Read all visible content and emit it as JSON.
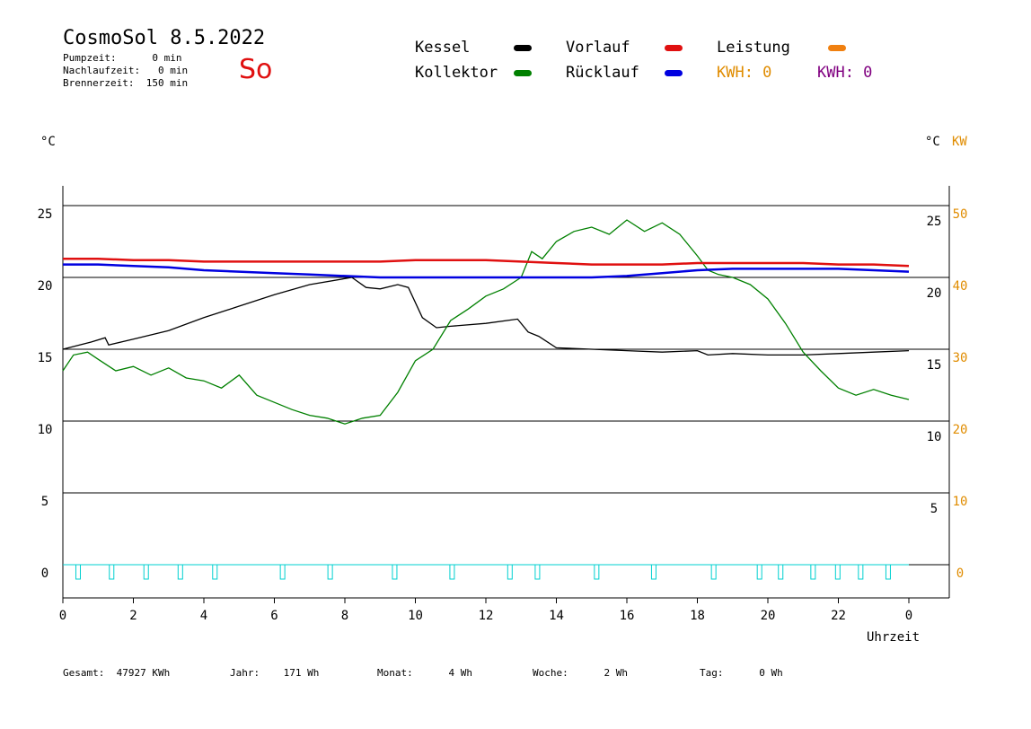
{
  "header": {
    "title": "CosmoSol 8.5.2022",
    "pumpzeit": "Pumpzeit:      0 min",
    "nachlaufzeit": "Nachlaufzeit:   0 min",
    "brennerzeit": "Brennerzeit:  150 min",
    "day": "So"
  },
  "legend": {
    "kessel": {
      "label": "Kessel",
      "color": "#000000"
    },
    "kollektor": {
      "label": "Kollektor",
      "color": "#008000"
    },
    "vorlauf": {
      "label": "Vorlauf",
      "color": "#e01010"
    },
    "ruecklauf": {
      "label": "Rücklauf",
      "color": "#0000e0"
    },
    "leistung": {
      "label": "Leistung",
      "color": "#f08010"
    },
    "kwh1": {
      "label": "KWH: 0",
      "color": "#e08c00"
    },
    "kwh2": {
      "label": "KWH: 0",
      "color": "#800080"
    }
  },
  "axes": {
    "left_unit": "°C",
    "right_unit_c": "°C",
    "right_unit_kw": "KW",
    "xlabel": "Uhrzeit"
  },
  "footer": {
    "gesamt": "Gesamt:  47927 KWh",
    "jahr": "Jahr:    171 Wh",
    "monat": "Monat:      4 Wh",
    "woche": "Woche:      2 Wh",
    "tag": "Tag:      0 Wh"
  },
  "chart_data": {
    "type": "line",
    "x_ticks": [
      "0",
      "2",
      "4",
      "6",
      "8",
      "10",
      "12",
      "14",
      "16",
      "18",
      "20",
      "22",
      "0"
    ],
    "y_left_ticks": [
      "0",
      "5",
      "10",
      "15",
      "20",
      "25"
    ],
    "y_right_c_ticks": [
      "5",
      "10",
      "15",
      "20",
      "25"
    ],
    "y_right_kw_ticks": [
      "0",
      "10",
      "20",
      "30",
      "40",
      "50"
    ],
    "xlim": [
      0,
      24
    ],
    "ylim": [
      -2,
      26.5
    ],
    "grid": true,
    "series": [
      {
        "name": "Kessel",
        "color": "#000000",
        "x": [
          0,
          0.8,
          1.2,
          1.3,
          2,
          3,
          4,
          5,
          6,
          7,
          8.2,
          8.6,
          9,
          9.5,
          9.8,
          10.2,
          10.6,
          11,
          12,
          12.9,
          13.2,
          13.5,
          14,
          15,
          16,
          17,
          18,
          18.3,
          19,
          20,
          21,
          22,
          23,
          24
        ],
        "y": [
          15.0,
          15.5,
          15.8,
          15.3,
          15.7,
          16.3,
          17.2,
          18.0,
          18.8,
          19.5,
          20.0,
          19.3,
          19.2,
          19.5,
          19.3,
          17.2,
          16.5,
          16.6,
          16.8,
          17.1,
          16.2,
          15.9,
          15.1,
          15.0,
          14.9,
          14.8,
          14.9,
          14.6,
          14.7,
          14.6,
          14.6,
          14.7,
          14.8,
          14.9
        ]
      },
      {
        "name": "Kollektor",
        "color": "#008000",
        "x": [
          0,
          0.3,
          0.7,
          1,
          1.5,
          2,
          2.5,
          3,
          3.5,
          4,
          4.5,
          5,
          5.5,
          6,
          6.5,
          7,
          7.5,
          8,
          8.5,
          9,
          9.5,
          10,
          10.5,
          11,
          11.5,
          12,
          12.5,
          13,
          13.3,
          13.6,
          14,
          14.5,
          15,
          15.5,
          16,
          16.5,
          17,
          17.5,
          18,
          18.3,
          18.6,
          19,
          19.5,
          20,
          20.5,
          21,
          21.5,
          22,
          22.5,
          23,
          23.5,
          24
        ],
        "y": [
          13.5,
          14.6,
          14.8,
          14.3,
          13.5,
          13.8,
          13.2,
          13.7,
          13.0,
          12.8,
          12.3,
          13.2,
          11.8,
          11.3,
          10.8,
          10.4,
          10.2,
          9.8,
          10.2,
          10.4,
          12.0,
          14.2,
          15.0,
          17.0,
          17.8,
          18.7,
          19.2,
          20.0,
          21.8,
          21.3,
          22.5,
          23.2,
          23.5,
          23.0,
          24.0,
          23.2,
          23.8,
          23.0,
          21.5,
          20.5,
          20.2,
          20.0,
          19.5,
          18.5,
          16.8,
          14.8,
          13.5,
          12.3,
          11.8,
          12.2,
          11.8,
          11.5
        ]
      },
      {
        "name": "Vorlauf",
        "color": "#e01010",
        "x": [
          0,
          1,
          2,
          3,
          4,
          5,
          6,
          7,
          8,
          9,
          10,
          11,
          12,
          13,
          14,
          15,
          16,
          17,
          18,
          19,
          20,
          21,
          22,
          23,
          24
        ],
        "y": [
          21.3,
          21.3,
          21.2,
          21.2,
          21.1,
          21.1,
          21.1,
          21.1,
          21.1,
          21.1,
          21.2,
          21.2,
          21.2,
          21.1,
          21.0,
          20.9,
          20.9,
          20.9,
          21.0,
          21.0,
          21.0,
          21.0,
          20.9,
          20.9,
          20.8
        ]
      },
      {
        "name": "Rücklauf",
        "color": "#0000e0",
        "x": [
          0,
          1,
          2,
          3,
          4,
          5,
          6,
          7,
          8,
          9,
          10,
          11,
          12,
          13,
          14,
          15,
          16,
          17,
          18,
          19,
          20,
          21,
          22,
          23,
          24
        ],
        "y": [
          20.9,
          20.9,
          20.8,
          20.7,
          20.5,
          20.4,
          20.3,
          20.2,
          20.1,
          20.0,
          20.0,
          20.0,
          20.0,
          20.0,
          20.0,
          20.0,
          20.1,
          20.3,
          20.5,
          20.6,
          20.6,
          20.6,
          20.6,
          20.5,
          20.4
        ]
      },
      {
        "name": "Pumpe",
        "color": "#00d0d0",
        "pulses": [
          0.42,
          1.37,
          2.35,
          3.32,
          4.3,
          6.22,
          7.57,
          9.4,
          11.03,
          12.67,
          13.45,
          15.13,
          16.75,
          18.45,
          19.75,
          20.35,
          21.27,
          21.97,
          22.62,
          23.4
        ]
      }
    ]
  }
}
